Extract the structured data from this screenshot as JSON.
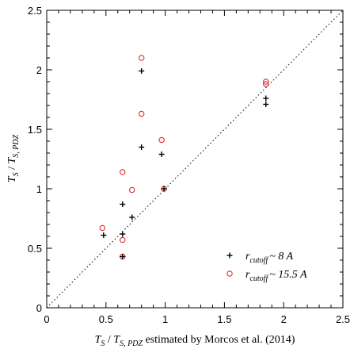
{
  "chart_data": {
    "type": "scatter",
    "xlabel": {
      "main": "T",
      "sub": "S",
      "sep": " / ",
      "main2": "T",
      "sub2": "S, PDZ",
      "suffix": " estimated by Morcos et  al. (2014)"
    },
    "ylabel": {
      "main": "T",
      "sub": "S",
      "sep": " / ",
      "main2": "T",
      "sub2": "S, PDZ"
    },
    "xlim": [
      0,
      2.5
    ],
    "ylim": [
      0,
      2.5
    ],
    "xticks": [
      "0",
      "0.5",
      "1",
      "1.5",
      "2",
      "2.5"
    ],
    "yticks": [
      "0",
      "0.5",
      "1",
      "1.5",
      "2",
      "2.5"
    ],
    "xtick_values": [
      0,
      0.5,
      1,
      1.5,
      2,
      2.5
    ],
    "ytick_values": [
      0,
      0.5,
      1,
      1.5,
      2,
      2.5
    ],
    "reference_line": {
      "style": "dotted",
      "from": [
        0,
        0
      ],
      "to": [
        2.5,
        2.5
      ]
    },
    "legend_position": "bottom-right",
    "series": [
      {
        "legend_main": "r",
        "legend_sub": "cutoff",
        "legend_rest": "~  8 A",
        "marker": "plus",
        "color": "#000000",
        "points": [
          [
            0.48,
            0.61
          ],
          [
            0.64,
            0.62
          ],
          [
            0.64,
            0.43
          ],
          [
            0.64,
            0.87
          ],
          [
            0.72,
            0.76
          ],
          [
            0.8,
            1.99
          ],
          [
            0.8,
            1.35
          ],
          [
            0.97,
            1.29
          ],
          [
            0.99,
            1.0
          ],
          [
            1.85,
            1.76
          ],
          [
            1.85,
            1.71
          ]
        ]
      },
      {
        "legend_main": "r",
        "legend_sub": "cutoff",
        "legend_rest": "~  15.5 A",
        "marker": "circle",
        "color": "#e8282e",
        "points": [
          [
            0.47,
            0.67
          ],
          [
            0.64,
            0.57
          ],
          [
            0.64,
            0.43
          ],
          [
            0.64,
            1.14
          ],
          [
            0.72,
            0.99
          ],
          [
            0.8,
            2.1
          ],
          [
            0.8,
            1.63
          ],
          [
            0.97,
            1.41
          ],
          [
            0.99,
            1.0
          ],
          [
            1.85,
            1.9
          ],
          [
            1.85,
            1.88
          ]
        ]
      }
    ]
  }
}
